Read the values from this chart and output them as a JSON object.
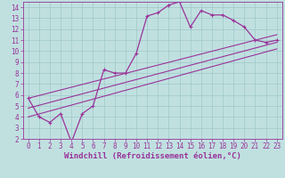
{
  "xlabel": "Windchill (Refroidissement éolien,°C)",
  "bg_color": "#c0e0e0",
  "line_color": "#993399",
  "xlim": [
    -0.5,
    23.5
  ],
  "ylim": [
    2,
    14.5
  ],
  "xticks": [
    0,
    1,
    2,
    3,
    4,
    5,
    6,
    7,
    8,
    9,
    10,
    11,
    12,
    13,
    14,
    15,
    16,
    17,
    18,
    19,
    20,
    21,
    22,
    23
  ],
  "yticks": [
    2,
    3,
    4,
    5,
    6,
    7,
    8,
    9,
    10,
    11,
    12,
    13,
    14
  ],
  "data_x": [
    0,
    1,
    2,
    3,
    4,
    5,
    6,
    7,
    8,
    9,
    10,
    11,
    12,
    13,
    14,
    15,
    16,
    17,
    18,
    19,
    20,
    21,
    22,
    23
  ],
  "data_y": [
    5.7,
    4.0,
    3.5,
    4.3,
    1.7,
    4.3,
    5.0,
    8.3,
    8.0,
    8.0,
    9.8,
    13.2,
    13.5,
    14.2,
    14.5,
    12.2,
    13.7,
    13.3,
    13.3,
    12.8,
    12.2,
    11.0,
    10.8,
    11.0
  ],
  "reg_lines": [
    {
      "x0": 0,
      "y0": 4.0,
      "x1": 23,
      "y1": 10.2
    },
    {
      "x0": 0,
      "y0": 4.8,
      "x1": 23,
      "y1": 10.8
    },
    {
      "x0": 0,
      "y0": 5.7,
      "x1": 23,
      "y1": 11.5
    }
  ],
  "grid_color": "#a0c8c8",
  "tick_fontsize": 5.5,
  "xlabel_fontsize": 6.5
}
